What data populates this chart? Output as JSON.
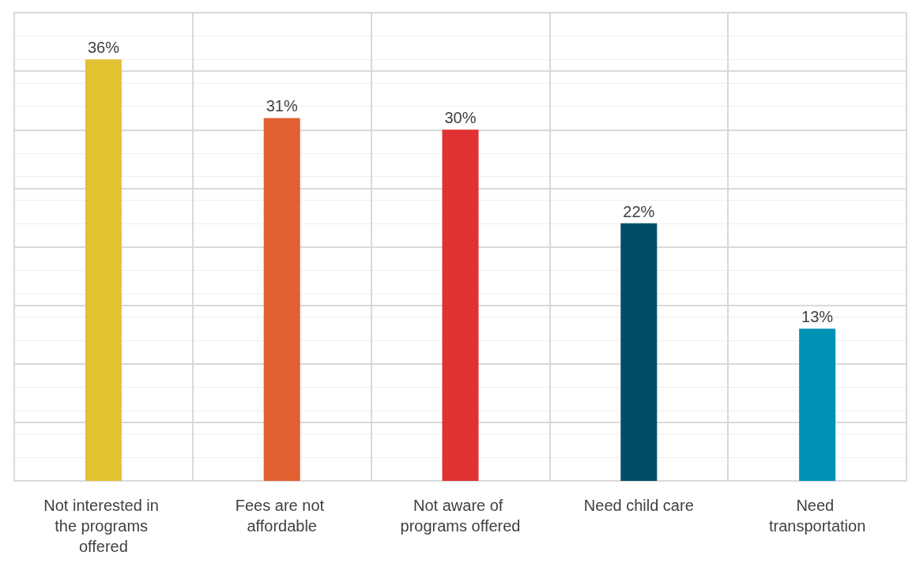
{
  "chart_data": {
    "type": "bar",
    "categories": [
      "Not interested in the programs offered",
      "Fees are not affordable",
      "Not aware of programs offered",
      "Need child care",
      "Need transportation"
    ],
    "values": [
      36,
      31,
      30,
      22,
      13
    ],
    "colors": [
      "#e3c232",
      "#e06131",
      "#e03232",
      "#004e66",
      "#0092b5"
    ],
    "value_labels": [
      "36%",
      "31%",
      "30%",
      "22%",
      "13%"
    ],
    "ylim": [
      0,
      40
    ],
    "yticks": [
      {
        "value": 0,
        "label": null
      },
      {
        "value": 5,
        "label": null
      },
      {
        "value": 10,
        "label": null
      },
      {
        "value": 15,
        "label": null
      },
      {
        "value": 20,
        "label": null
      },
      {
        "value": 25,
        "label": null
      },
      {
        "value": 30,
        "label": null
      },
      {
        "value": 35,
        "label": null
      },
      {
        "value": 40,
        "label": null
      }
    ],
    "tick_labels": "x",
    "grid": true
  }
}
